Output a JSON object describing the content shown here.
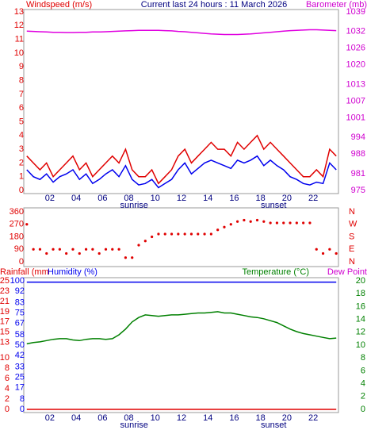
{
  "chart_data": [
    {
      "type": "line",
      "title": "Current last 24 hours : 11 March 2026",
      "ylabel": "Windspeed (m/s)",
      "y2label": "Barometer (mb)",
      "titlecolor": "#000080",
      "ycolor": "#e00000",
      "y2color": "#d000d0",
      "xcolor": "#000080",
      "x": [
        0.25,
        0.75,
        1.25,
        1.75,
        2.25,
        2.75,
        3.25,
        3.75,
        4.25,
        4.75,
        5.25,
        5.75,
        6.25,
        6.75,
        7.25,
        7.75,
        8.25,
        8.75,
        9.25,
        9.75,
        10.25,
        10.75,
        11.25,
        11.75,
        12.25,
        12.75,
        13.25,
        13.75,
        14.25,
        14.75,
        15.25,
        15.75,
        16.25,
        16.75,
        17.25,
        17.75,
        18.25,
        18.75,
        19.25,
        19.75,
        20.25,
        20.75,
        21.25,
        21.75,
        22.25,
        22.75,
        23.25,
        23.75
      ],
      "xlim": [
        0.2,
        23.8
      ],
      "xticks": [
        {
          "value": 2,
          "label": "02"
        },
        {
          "value": 4,
          "label": "04"
        },
        {
          "value": 6,
          "label": "06"
        },
        {
          "value": 8,
          "label": "08"
        },
        10,
        12,
        14,
        16,
        18,
        20,
        22
      ],
      "ylim": [
        0,
        13
      ],
      "yticks": [
        0,
        1,
        2,
        3,
        4,
        5,
        6,
        7,
        8,
        9,
        10,
        11,
        12,
        13
      ],
      "y2lim": [
        975,
        1039
      ],
      "y2ticks": [
        975,
        981,
        988,
        994,
        1001,
        1007,
        1013,
        1020,
        1026,
        1032,
        1039
      ],
      "annotations": [
        {
          "text": "sunrise",
          "x": 8.4
        },
        {
          "text": "sunset",
          "x": 19.0
        }
      ],
      "series": [
        {
          "color": "#e00000",
          "values": [
            2.5,
            2,
            1.5,
            2,
            1,
            1.5,
            2,
            2.5,
            1.5,
            2,
            1,
            1.5,
            2,
            2.5,
            2,
            3,
            1.5,
            1,
            1,
            1.5,
            0.5,
            1,
            1.5,
            2.5,
            3,
            2,
            2.5,
            3,
            3.5,
            3,
            3,
            2.5,
            3.5,
            3,
            3.5,
            4,
            3,
            3.5,
            3,
            2.5,
            2,
            1.5,
            1,
            1,
            1.5,
            1,
            3,
            2.5
          ]
        },
        {
          "color": "#0000ee",
          "values": [
            1.5,
            1,
            0.8,
            1.2,
            0.6,
            1,
            1.2,
            1.5,
            0.8,
            1.2,
            0.5,
            0.8,
            1.2,
            1.5,
            1,
            1.8,
            0.8,
            0.4,
            0.5,
            0.8,
            0.2,
            0.5,
            0.8,
            1.5,
            2,
            1.2,
            1.6,
            2,
            2.2,
            2,
            1.8,
            1.6,
            2.2,
            2,
            2.2,
            2.5,
            1.8,
            2.2,
            1.8,
            1.5,
            1,
            0.8,
            0.5,
            0.4,
            0.6,
            0.5,
            2,
            1.5
          ]
        },
        {
          "color": "#e000e0",
          "axis": "y2",
          "values": [
            1032.1,
            1032.0,
            1031.9,
            1031.8,
            1031.7,
            1031.7,
            1031.6,
            1031.6,
            1031.7,
            1031.7,
            1031.8,
            1031.8,
            1031.9,
            1032.0,
            1032.1,
            1032.2,
            1032.3,
            1032.4,
            1032.4,
            1032.4,
            1032.4,
            1032.3,
            1032.2,
            1032.0,
            1031.9,
            1031.7,
            1031.5,
            1031.3,
            1031.1,
            1031.0,
            1030.9,
            1030.9,
            1030.9,
            1031.0,
            1031.1,
            1031.3,
            1031.5,
            1031.7,
            1031.9,
            1032.1,
            1032.3,
            1032.4,
            1032.5,
            1032.6,
            1032.6,
            1032.5,
            1032.4,
            1032.3
          ]
        }
      ]
    },
    {
      "type": "scatter",
      "ycolor": "#e00000",
      "y2color": "#e00000",
      "x": [
        0.25,
        0.75,
        1.25,
        1.75,
        2.25,
        2.75,
        3.25,
        3.75,
        4.25,
        4.75,
        5.25,
        5.75,
        6.25,
        6.75,
        7.25,
        7.75,
        8.25,
        8.75,
        9.25,
        9.75,
        10.25,
        10.75,
        11.25,
        11.75,
        12.25,
        12.75,
        13.25,
        13.75,
        14.25,
        14.75,
        15.25,
        15.75,
        16.25,
        16.75,
        17.25,
        17.75,
        18.25,
        18.75,
        19.25,
        19.75,
        20.25,
        20.75,
        21.25,
        21.75,
        22.25,
        22.75,
        23.25,
        23.75
      ],
      "xlim": [
        0.2,
        23.8
      ],
      "ylim": [
        0,
        360
      ],
      "yticks": [
        0,
        90,
        180,
        270,
        360
      ],
      "y2lim": [
        0,
        360
      ],
      "y2ticks": [
        {
          "value": 0,
          "label": "N"
        },
        {
          "value": 90,
          "label": "E"
        },
        {
          "value": 180,
          "label": "S"
        },
        {
          "value": 270,
          "label": "W"
        },
        {
          "value": 360,
          "label": "N"
        }
      ],
      "series": [
        {
          "color": "#e00000",
          "values": [
            270,
            90,
            90,
            60,
            90,
            90,
            60,
            90,
            60,
            90,
            90,
            60,
            90,
            90,
            90,
            30,
            30,
            120,
            150,
            180,
            200,
            200,
            200,
            200,
            200,
            200,
            200,
            200,
            200,
            230,
            250,
            270,
            290,
            300,
            290,
            300,
            290,
            280,
            280,
            280,
            280,
            280,
            280,
            280,
            90,
            60,
            90,
            60
          ]
        }
      ]
    },
    {
      "type": "line",
      "ylabel": "Rainfall (mm",
      "ylabel2": "Humidity (%)",
      "y2label": "Temperature (°C)",
      "y2label2": "Dew Point",
      "ycolor": "#e00000",
      "y3color": "#0000ee",
      "y2color": "#008000",
      "dewcolor": "#d000d0",
      "xcolor": "#000080",
      "x": [
        0.25,
        0.75,
        1.25,
        1.75,
        2.25,
        2.75,
        3.25,
        3.75,
        4.25,
        4.75,
        5.25,
        5.75,
        6.25,
        6.75,
        7.25,
        7.75,
        8.25,
        8.75,
        9.25,
        9.75,
        10.25,
        10.75,
        11.25,
        11.75,
        12.25,
        12.75,
        13.25,
        13.75,
        14.25,
        14.75,
        15.25,
        15.75,
        16.25,
        16.75,
        17.25,
        17.75,
        18.25,
        18.75,
        19.25,
        19.75,
        20.25,
        20.75,
        21.25,
        21.75,
        22.25,
        22.75,
        23.25,
        23.75
      ],
      "xlim": [
        0.2,
        23.8
      ],
      "xticks": [
        {
          "value": 2,
          "label": "02"
        },
        {
          "value": 4,
          "label": "04"
        },
        {
          "value": 6,
          "label": "06"
        },
        {
          "value": 8,
          "label": "08"
        },
        10,
        12,
        14,
        16,
        18,
        20,
        22
      ],
      "ylim": [
        0,
        25
      ],
      "yticks": [
        0,
        2,
        4,
        6,
        8,
        10,
        13,
        15,
        17,
        19,
        21,
        23,
        25
      ],
      "y3lim": [
        0,
        100
      ],
      "y3ticks": [
        0,
        8,
        17,
        25,
        33,
        42,
        50,
        58,
        67,
        75,
        83,
        92,
        100
      ],
      "y2lim": [
        0,
        20
      ],
      "y2ticks": [
        0,
        2,
        4,
        6,
        8,
        10,
        12,
        14,
        16,
        18,
        20
      ],
      "annotations": [
        {
          "text": "sunrise",
          "x": 8.4
        },
        {
          "text": "sunset",
          "x": 19.0
        }
      ],
      "series": [
        {
          "color": "#e00000",
          "values": [
            0,
            0,
            0,
            0,
            0,
            0,
            0,
            0,
            0,
            0,
            0,
            0,
            0,
            0,
            0,
            0,
            0,
            0,
            0,
            0,
            0,
            0,
            0,
            0,
            0,
            0,
            0,
            0,
            0,
            0,
            0,
            0,
            0,
            0,
            0,
            0,
            0,
            0,
            0,
            0,
            0,
            0,
            0,
            0,
            0,
            0,
            0,
            0
          ]
        },
        {
          "color": "#0000ee",
          "axis": "y3",
          "values": [
            99,
            99,
            99,
            99,
            99,
            99,
            99,
            99,
            99,
            99,
            99,
            99,
            99,
            99,
            99,
            99,
            99,
            99,
            99,
            99,
            99,
            99,
            99,
            99,
            99,
            99,
            99,
            99,
            99,
            99,
            99,
            99,
            99,
            99,
            99,
            99,
            99,
            99,
            99,
            99,
            99,
            99,
            99,
            99,
            99,
            99,
            99,
            99
          ]
        },
        {
          "color": "#008000",
          "axis": "y2",
          "values": [
            10.2,
            10.4,
            10.5,
            10.7,
            10.9,
            11.0,
            11.0,
            10.8,
            10.7,
            10.9,
            11.0,
            11.0,
            10.9,
            11.0,
            11.6,
            12.5,
            13.6,
            14.3,
            14.7,
            14.6,
            14.5,
            14.6,
            14.7,
            14.7,
            14.8,
            14.9,
            15.0,
            15.0,
            15.1,
            15.2,
            15.0,
            15.0,
            14.8,
            14.6,
            14.4,
            14.3,
            14.1,
            13.8,
            13.5,
            13.0,
            12.5,
            12.1,
            11.8,
            11.6,
            11.4,
            11.2,
            11.0,
            11.1
          ]
        }
      ]
    }
  ]
}
